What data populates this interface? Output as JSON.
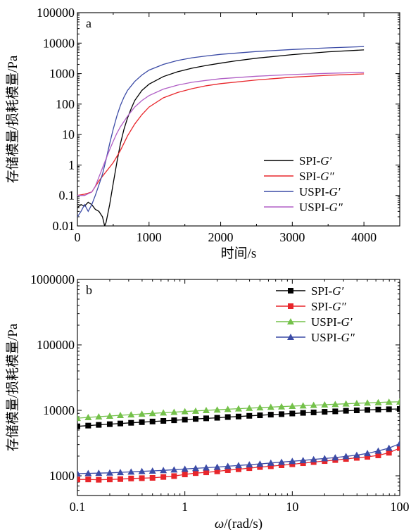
{
  "chart_data": [
    {
      "type": "line",
      "panel_label": "a",
      "xlabel": "时间/s",
      "ylabel": "存储模量/损耗模量/Pa",
      "xlim": [
        0,
        4500
      ],
      "ylim": [
        0.01,
        100000
      ],
      "yscale": "log",
      "x_ticks": [
        "0",
        "1000",
        "2000",
        "3000",
        "4000"
      ],
      "y_ticks": [
        "0.01",
        "0.1",
        "1",
        "10",
        "100",
        "1000",
        "10000",
        "100000"
      ],
      "legend_position": "bottom-right",
      "series": [
        {
          "name": "SPI-G′",
          "color": "#000000",
          "x": [
            0,
            50,
            100,
            150,
            200,
            250,
            300,
            350,
            380,
            400,
            450,
            500,
            550,
            600,
            650,
            700,
            750,
            800,
            900,
            1000,
            1200,
            1400,
            1600,
            1800,
            2000,
            2200,
            2500,
            3000,
            3500,
            4000
          ],
          "y": [
            0.04,
            0.05,
            0.045,
            0.06,
            0.05,
            0.035,
            0.03,
            0.02,
            0.01,
            0.013,
            0.05,
            0.25,
            1.2,
            5,
            15,
            35,
            70,
            130,
            280,
            450,
            800,
            1150,
            1500,
            1850,
            2200,
            2600,
            3200,
            4200,
            5200,
            6000
          ]
        },
        {
          "name": "SPI-G″",
          "color": "#e8262b",
          "x": [
            0,
            100,
            200,
            300,
            400,
            500,
            600,
            700,
            800,
            900,
            1000,
            1200,
            1400,
            1600,
            1800,
            2000,
            2500,
            3000,
            3500,
            4000
          ],
          "y": [
            0.1,
            0.11,
            0.13,
            0.3,
            0.6,
            1.2,
            3,
            9,
            22,
            45,
            80,
            160,
            240,
            320,
            400,
            470,
            620,
            760,
            880,
            980
          ]
        },
        {
          "name": "USPI-G′",
          "color": "#3b4ba6",
          "x": [
            0,
            50,
            100,
            150,
            200,
            250,
            300,
            350,
            400,
            450,
            500,
            550,
            600,
            650,
            700,
            800,
            900,
            1000,
            1200,
            1400,
            1600,
            1800,
            2000,
            2500,
            3000,
            3500,
            4000
          ],
          "y": [
            0.02,
            0.03,
            0.05,
            0.03,
            0.05,
            0.1,
            0.22,
            0.5,
            1.5,
            5,
            15,
            40,
            90,
            170,
            280,
            550,
            900,
            1300,
            2000,
            2700,
            3300,
            3800,
            4300,
            5300,
            6200,
            7000,
            7700
          ]
        },
        {
          "name": "USPI-G″",
          "color": "#b05ec5",
          "x": [
            0,
            100,
            200,
            250,
            300,
            350,
            400,
            450,
            500,
            550,
            600,
            700,
            800,
            900,
            1000,
            1200,
            1400,
            1600,
            1800,
            2000,
            2500,
            3000,
            3500,
            4000
          ],
          "y": [
            0.1,
            0.1,
            0.13,
            0.2,
            0.4,
            0.8,
            1.6,
            3.2,
            6,
            11,
            18,
            40,
            80,
            130,
            190,
            310,
            420,
            520,
            600,
            680,
            820,
            930,
            1020,
            1100
          ]
        }
      ]
    },
    {
      "type": "line",
      "panel_label": "b",
      "xlabel": "ω/(rad/s)",
      "ylabel": "存储模量/损耗模量/Pa",
      "xscale": "log",
      "yscale": "log",
      "xlim": [
        0.1,
        100
      ],
      "ylim": [
        500,
        1000000
      ],
      "x_ticks": [
        "0.1",
        "1",
        "10",
        "100"
      ],
      "y_ticks": [
        "1000",
        "10000",
        "100000",
        "1000000"
      ],
      "legend_position": "top-right",
      "series": [
        {
          "name": "SPI-G′",
          "color": "#000000",
          "marker": "square",
          "x": [
            0.1,
            0.126,
            0.158,
            0.2,
            0.251,
            0.316,
            0.398,
            0.5,
            0.631,
            0.794,
            1,
            1.26,
            1.58,
            2,
            2.51,
            3.16,
            3.98,
            5,
            6.31,
            7.94,
            10,
            12.6,
            15.8,
            20,
            25.1,
            31.6,
            39.8,
            50,
            63.1,
            79.4,
            100
          ],
          "y": [
            5700,
            5850,
            6000,
            6150,
            6300,
            6450,
            6600,
            6750,
            6900,
            7050,
            7200,
            7400,
            7550,
            7700,
            7900,
            8050,
            8250,
            8400,
            8600,
            8750,
            8950,
            9150,
            9300,
            9500,
            9650,
            9850,
            10000,
            10150,
            10300,
            10400,
            10500
          ]
        },
        {
          "name": "SPI-G″",
          "color": "#e8262b",
          "marker": "square",
          "x": [
            0.1,
            0.126,
            0.158,
            0.2,
            0.251,
            0.316,
            0.398,
            0.5,
            0.631,
            0.794,
            1,
            1.26,
            1.58,
            2,
            2.51,
            3.16,
            3.98,
            5,
            6.31,
            7.94,
            10,
            12.6,
            15.8,
            20,
            25.1,
            31.6,
            39.8,
            50,
            63.1,
            79.4,
            100
          ],
          "y": [
            880,
            880,
            870,
            880,
            890,
            910,
            920,
            930,
            960,
            990,
            1050,
            1100,
            1130,
            1170,
            1220,
            1260,
            1310,
            1360,
            1400,
            1450,
            1500,
            1560,
            1620,
            1680,
            1740,
            1810,
            1880,
            1950,
            2050,
            2250,
            2650
          ]
        },
        {
          "name": "USPI-G′",
          "color": "#74c14a",
          "marker": "triangle",
          "x": [
            0.1,
            0.126,
            0.158,
            0.2,
            0.251,
            0.316,
            0.398,
            0.5,
            0.631,
            0.794,
            1,
            1.26,
            1.58,
            2,
            2.51,
            3.16,
            3.98,
            5,
            6.31,
            7.94,
            10,
            12.6,
            15.8,
            20,
            25.1,
            31.6,
            39.8,
            50,
            63.1,
            79.4,
            100
          ],
          "y": [
            7600,
            7800,
            8000,
            8200,
            8400,
            8600,
            8800,
            9000,
            9200,
            9400,
            9600,
            9800,
            10000,
            10200,
            10400,
            10600,
            10800,
            11000,
            11200,
            11400,
            11600,
            11800,
            12000,
            12200,
            12400,
            12600,
            12800,
            13000,
            13200,
            13400,
            13500
          ]
        },
        {
          "name": "USPI-G″",
          "color": "#3b4ba6",
          "marker": "triangle",
          "x": [
            0.1,
            0.126,
            0.158,
            0.2,
            0.251,
            0.316,
            0.398,
            0.5,
            0.631,
            0.794,
            1,
            1.26,
            1.58,
            2,
            2.51,
            3.16,
            3.98,
            5,
            6.31,
            7.94,
            10,
            12.6,
            15.8,
            20,
            25.1,
            31.6,
            39.8,
            50,
            63.1,
            79.4,
            100
          ],
          "y": [
            1080,
            1090,
            1100,
            1110,
            1130,
            1150,
            1170,
            1190,
            1210,
            1240,
            1270,
            1300,
            1330,
            1360,
            1400,
            1440,
            1480,
            1520,
            1570,
            1620,
            1670,
            1720,
            1780,
            1840,
            1900,
            1980,
            2070,
            2200,
            2400,
            2650,
            3100
          ]
        }
      ]
    }
  ]
}
